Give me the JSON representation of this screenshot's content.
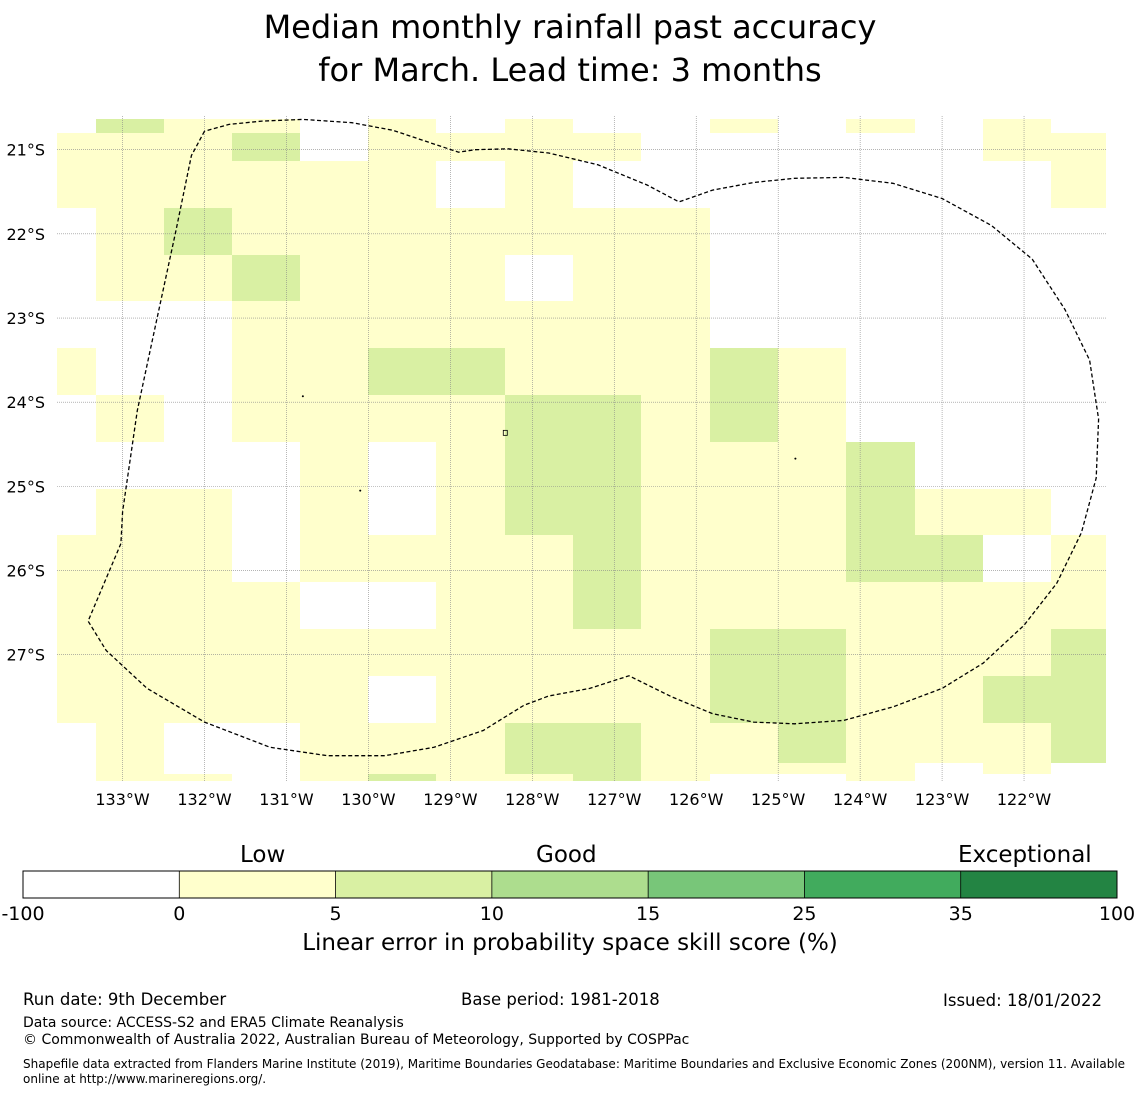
{
  "title": {
    "line1": "Median monthly rainfall past accuracy",
    "line2": "for March. Lead time: 3 months"
  },
  "colors": {
    "class_0": "#ffffff",
    "class_1": "#ffffcc",
    "class_2": "#d9f0a3",
    "class_3": "#addd8e",
    "class_4": "#78c679",
    "class_5": "#41ab5d",
    "class_6": "#238443",
    "boundary": "#000000",
    "gridline": "#888888"
  },
  "map": {
    "lon_range": [
      -133.8,
      -121.0
    ],
    "lat_range": [
      -28.5,
      -20.6
    ],
    "lon_ticks": [
      -133,
      -132,
      -131,
      -130,
      -129,
      -128,
      -127,
      -126,
      -125,
      -124,
      -123,
      -122
    ],
    "lon_labels": [
      "133°W",
      "132°W",
      "131°W",
      "130°W",
      "129°W",
      "128°W",
      "127°W",
      "126°W",
      "125°W",
      "124°W",
      "123°W",
      "122°W"
    ],
    "lat_ticks": [
      -21,
      -22,
      -23,
      -24,
      -25,
      -26,
      -27
    ],
    "lat_labels": [
      "21°S",
      "22°S",
      "23°S",
      "24°S",
      "25°S",
      "26°S",
      "27°S"
    ],
    "cell_lon_edges": [
      -133.8,
      -133.33,
      -132.5,
      -131.67,
      -130.83,
      -130.0,
      -129.17,
      -128.33,
      -127.5,
      -126.67,
      -125.83,
      -125.0,
      -124.17,
      -123.33,
      -122.5,
      -121.67,
      -121.0
    ],
    "cell_lat_edges": [
      -20.63,
      -20.8,
      -21.13,
      -21.69,
      -22.25,
      -22.8,
      -23.36,
      -23.92,
      -24.47,
      -25.03,
      -25.58,
      -26.14,
      -26.69,
      -27.25,
      -27.81,
      -28.29,
      -28.42,
      -28.5
    ],
    "grid": [
      [
        0,
        2,
        1,
        1,
        0,
        1,
        0,
        1,
        0,
        0,
        1,
        0,
        1,
        0,
        1,
        0
      ],
      [
        1,
        1,
        1,
        2,
        0,
        1,
        1,
        1,
        1,
        0,
        0,
        0,
        0,
        0,
        1,
        1
      ],
      [
        1,
        1,
        1,
        1,
        1,
        1,
        0,
        1,
        0,
        0,
        0,
        0,
        0,
        0,
        0,
        1
      ],
      [
        0,
        1,
        2,
        1,
        1,
        1,
        1,
        1,
        1,
        1,
        0,
        0,
        0,
        0,
        0,
        0
      ],
      [
        0,
        1,
        1,
        2,
        1,
        1,
        1,
        0,
        1,
        1,
        0,
        0,
        0,
        0,
        0,
        0
      ],
      [
        0,
        0,
        0,
        1,
        1,
        1,
        1,
        1,
        1,
        1,
        0,
        0,
        0,
        0,
        0,
        0
      ],
      [
        1,
        0,
        0,
        1,
        1,
        2,
        2,
        1,
        1,
        1,
        2,
        1,
        0,
        0,
        0,
        0
      ],
      [
        0,
        1,
        0,
        1,
        1,
        1,
        1,
        2,
        2,
        1,
        2,
        1,
        0,
        0,
        0,
        0
      ],
      [
        0,
        0,
        0,
        0,
        1,
        0,
        1,
        2,
        2,
        1,
        1,
        1,
        2,
        0,
        0,
        0
      ],
      [
        0,
        1,
        1,
        0,
        1,
        0,
        1,
        2,
        2,
        1,
        1,
        1,
        2,
        1,
        1,
        0
      ],
      [
        1,
        1,
        1,
        0,
        1,
        1,
        1,
        1,
        2,
        1,
        1,
        1,
        2,
        2,
        0,
        1
      ],
      [
        1,
        1,
        1,
        1,
        0,
        0,
        1,
        1,
        2,
        1,
        1,
        1,
        1,
        1,
        1,
        1
      ],
      [
        1,
        1,
        1,
        1,
        1,
        1,
        1,
        1,
        1,
        1,
        2,
        2,
        1,
        1,
        1,
        2
      ],
      [
        1,
        1,
        1,
        1,
        1,
        0,
        1,
        1,
        1,
        1,
        2,
        2,
        1,
        1,
        2,
        2
      ],
      [
        0,
        1,
        0,
        0,
        1,
        1,
        1,
        2,
        2,
        1,
        1,
        2,
        1,
        1,
        1,
        2
      ],
      [
        0,
        1,
        0,
        0,
        1,
        1,
        1,
        2,
        2,
        1,
        1,
        1,
        1,
        0,
        1,
        0
      ],
      [
        0,
        1,
        1,
        0,
        1,
        2,
        1,
        1,
        2,
        1,
        0,
        0,
        1,
        0,
        0,
        0
      ]
    ],
    "eez_boundary": [
      [
        -132.0,
        -20.78
      ],
      [
        -132.16,
        -21.07
      ],
      [
        -132.35,
        -21.97
      ],
      [
        -132.6,
        -23.1
      ],
      [
        -132.82,
        -24.1
      ],
      [
        -133.0,
        -25.3
      ],
      [
        -133.02,
        -25.68
      ],
      [
        -133.42,
        -26.6
      ],
      [
        -133.2,
        -26.95
      ],
      [
        -132.7,
        -27.4
      ],
      [
        -132.0,
        -27.8
      ],
      [
        -131.2,
        -28.1
      ],
      [
        -130.5,
        -28.2
      ],
      [
        -129.8,
        -28.2
      ],
      [
        -129.2,
        -28.1
      ],
      [
        -128.6,
        -27.9
      ],
      [
        -128.1,
        -27.6
      ],
      [
        -127.8,
        -27.49
      ],
      [
        -127.3,
        -27.4
      ],
      [
        -126.82,
        -27.25
      ],
      [
        -126.3,
        -27.5
      ],
      [
        -125.8,
        -27.7
      ],
      [
        -125.3,
        -27.8
      ],
      [
        -124.8,
        -27.82
      ],
      [
        -124.2,
        -27.78
      ],
      [
        -123.6,
        -27.62
      ],
      [
        -123.0,
        -27.4
      ],
      [
        -122.5,
        -27.1
      ],
      [
        -122.0,
        -26.65
      ],
      [
        -121.6,
        -26.15
      ],
      [
        -121.3,
        -25.55
      ],
      [
        -121.12,
        -24.9
      ],
      [
        -121.09,
        -24.2
      ],
      [
        -121.2,
        -23.5
      ],
      [
        -121.5,
        -22.9
      ],
      [
        -121.9,
        -22.3
      ],
      [
        -122.4,
        -21.9
      ],
      [
        -123.0,
        -21.58
      ],
      [
        -123.6,
        -21.4
      ],
      [
        -124.2,
        -21.33
      ],
      [
        -124.8,
        -21.34
      ],
      [
        -125.3,
        -21.39
      ],
      [
        -125.8,
        -21.48
      ],
      [
        -126.21,
        -21.62
      ],
      [
        -126.6,
        -21.42
      ],
      [
        -127.2,
        -21.18
      ],
      [
        -127.8,
        -21.04
      ],
      [
        -128.3,
        -20.99
      ],
      [
        -128.7,
        -21.0
      ],
      [
        -128.9,
        -21.03
      ],
      [
        -129.3,
        -20.9
      ],
      [
        -129.7,
        -20.77
      ],
      [
        -130.2,
        -20.68
      ],
      [
        -130.8,
        -20.64
      ],
      [
        -131.3,
        -20.66
      ],
      [
        -131.7,
        -20.7
      ],
      [
        -132.0,
        -20.78
      ]
    ],
    "islands": [
      {
        "lon": -128.33,
        "lat": -24.37,
        "shape": "atoll"
      },
      {
        "lon": -130.8,
        "lat": -23.93,
        "shape": "dot"
      },
      {
        "lon": -130.1,
        "lat": -25.05,
        "shape": "dot"
      },
      {
        "lon": -124.79,
        "lat": -24.67,
        "shape": "dot"
      }
    ]
  },
  "colorbar": {
    "boundaries": [
      "-100",
      "0",
      "5",
      "10",
      "15",
      "25",
      "35",
      "100"
    ],
    "categories": [
      "Low",
      "Good",
      "Exceptional"
    ],
    "label": "Linear error in probability space skill score (%)"
  },
  "footer": {
    "run_date": "Run date: 9th December",
    "base_period": "Base period: 1981-2018",
    "issued": "Issued: 18/01/2022",
    "data_source": "Data source: ACCESS-S2 and ERA5 Climate Reanalysis",
    "copyright": "© Commonwealth of Australia 2022, Australian Bureau of Meteorology, Supported by COSPPac",
    "shapefile_line1": "Shapefile data extracted from Flanders Marine Institute (2019), Maritime Boundaries Geodatabase: Maritime Boundaries and Exclusive Economic Zones (200NM), version 11. Available",
    "shapefile_line2": "online at http://www.marineregions.org/."
  }
}
